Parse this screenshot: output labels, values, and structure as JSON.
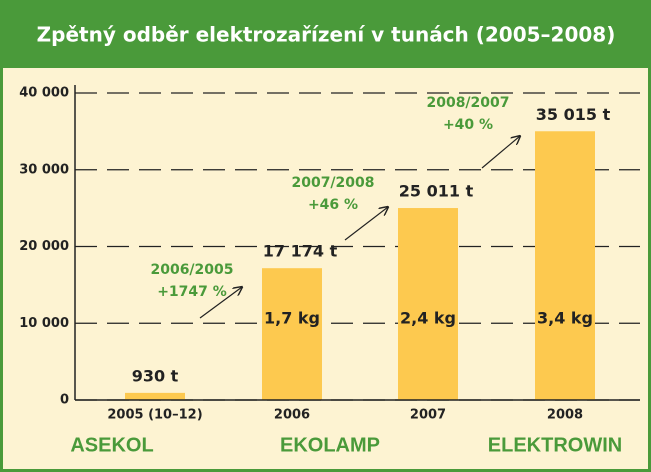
{
  "chart_data": {
    "type": "bar",
    "title": "Zpětný odběr elektrozařízení v tunách (2005–2008)",
    "categories": [
      "2005 (10–12)",
      "2006",
      "2007",
      "2008"
    ],
    "values": [
      930,
      17174,
      25011,
      35015
    ],
    "value_labels": [
      "930 t",
      "17 174 t",
      "25 011 t",
      "35 015 t"
    ],
    "inner_labels": [
      null,
      "1,7 kg",
      "2,4 kg",
      "3,4 kg"
    ],
    "color": "#fdc94f",
    "ylim": [
      0,
      40000
    ],
    "yticks": [
      0,
      {
        "value": 10000,
        "label": "10 000"
      },
      {
        "value": 20000,
        "label": "20 000"
      },
      {
        "value": 30000,
        "label": "30 000"
      },
      {
        "value": 40000,
        "label": "40 000"
      }
    ],
    "grid": true,
    "annotations": [
      {
        "lines": [
          "2006/2005",
          "+1747 %"
        ]
      },
      {
        "lines": [
          "2007/2008",
          "+46 %"
        ]
      },
      {
        "lines": [
          "2008/2007",
          "+40 %"
        ]
      }
    ],
    "companies": [
      "ASEKOL",
      "EKOLAMP",
      "ELEKTROWIN"
    ]
  }
}
